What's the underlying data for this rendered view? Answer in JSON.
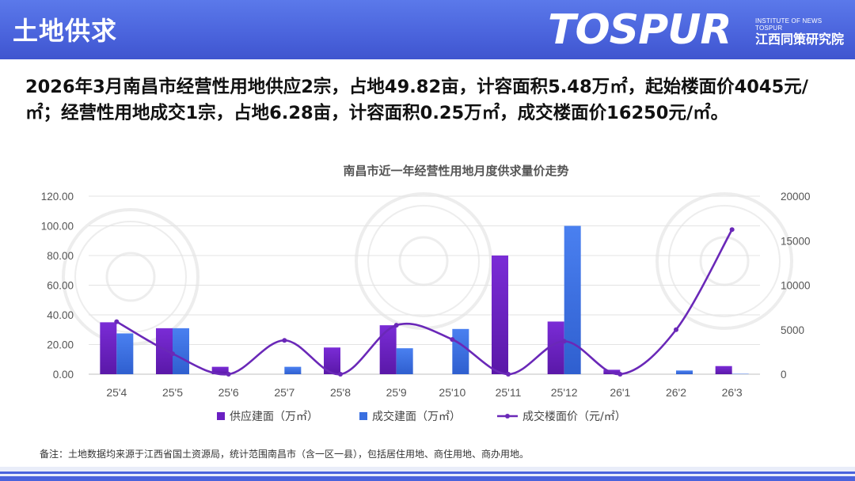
{
  "header": {
    "title": "土地供求",
    "logo_main": "TOSPUR",
    "logo_sub_en": "INSTITUTE OF NEWS TOSPUR",
    "logo_sub_cn": "江西同策研究院"
  },
  "summary": "2026年3月南昌市经营性用地供应2宗，占地49.82亩，计容面积5.48万㎡，起始楼面价4045元/㎡；经营性用地成交1宗，占地6.28亩，计容面积0.25万㎡，成交楼面价16250元/㎡。",
  "footnote": "备注：土地数据均来源于江西省国土资源局，统计范围南昌市（含一区一县），包括居住用地、商住用地、商办用地。",
  "colors": {
    "supply": "#6a1fc2",
    "deal": "#3a6fe0",
    "price": "#6a28b8",
    "header": "#4a63dc"
  },
  "chart_data": {
    "type": "bar",
    "title": "南昌市近一年经营性用地月度供求量价走势",
    "categories": [
      "25'4",
      "25'5",
      "25'6",
      "25'7",
      "25'8",
      "25'9",
      "25'10",
      "25'11",
      "25'12",
      "26'1",
      "26'2",
      "26'3"
    ],
    "series": [
      {
        "name": "供应建面（万㎡）",
        "type": "bar",
        "axis": "left",
        "values": [
          35,
          31,
          5,
          0,
          18,
          33,
          0,
          80,
          35.5,
          3,
          0,
          5.48
        ]
      },
      {
        "name": "成交建面（万㎡）",
        "type": "bar",
        "axis": "left",
        "values": [
          27.5,
          31,
          0,
          5,
          0,
          17.5,
          30.5,
          0,
          100,
          0,
          2.5,
          0.25
        ]
      },
      {
        "name": "成交楼面价（元/㎡）",
        "type": "line",
        "axis": "right",
        "values": [
          5900,
          2300,
          0,
          3800,
          0,
          5500,
          3900,
          0,
          3700,
          0,
          5000,
          16250
        ]
      }
    ],
    "yleft": {
      "min": 0,
      "max": 120,
      "step": 20,
      "ticks": [
        "0.00",
        "20.00",
        "40.00",
        "60.00",
        "80.00",
        "100.00",
        "120.00"
      ]
    },
    "yright": {
      "min": 0,
      "max": 20000,
      "step": 5000,
      "ticks": [
        "0",
        "5000",
        "10000",
        "15000",
        "20000"
      ]
    },
    "grid": true,
    "legend": "bottom"
  }
}
